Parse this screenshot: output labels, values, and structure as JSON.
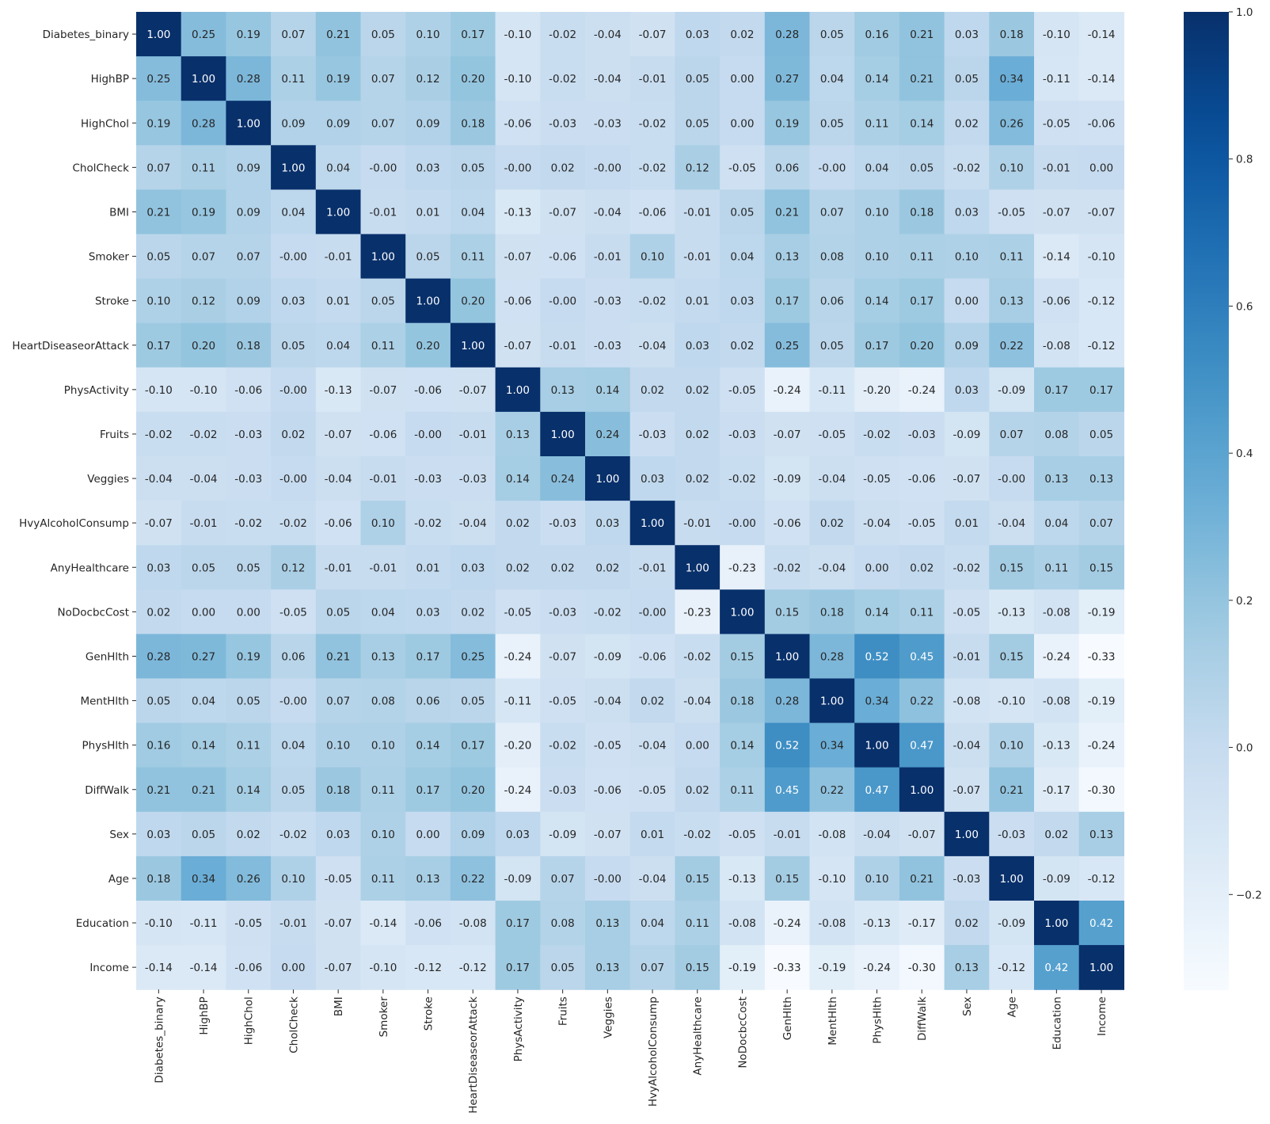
{
  "chart_data": {
    "type": "heatmap",
    "title": "",
    "xlabel": "",
    "ylabel": "",
    "colormap": "Blues",
    "annotation_format": "0.00",
    "labels": [
      "Diabetes_binary",
      "HighBP",
      "HighChol",
      "CholCheck",
      "BMI",
      "Smoker",
      "Stroke",
      "HeartDiseaseorAttack",
      "PhysActivity",
      "Fruits",
      "Veggies",
      "HvyAlcoholConsump",
      "AnyHealthcare",
      "NoDocbcCost",
      "GenHlth",
      "MentHlth",
      "PhysHlth",
      "DiffWalk",
      "Sex",
      "Age",
      "Education",
      "Income"
    ],
    "matrix": [
      [
        1.0,
        0.25,
        0.19,
        0.07,
        0.21,
        0.05,
        0.1,
        0.17,
        -0.1,
        -0.02,
        -0.04,
        -0.07,
        0.03,
        0.02,
        0.28,
        0.05,
        0.16,
        0.21,
        0.03,
        0.18,
        -0.1,
        -0.14
      ],
      [
        0.25,
        1.0,
        0.28,
        0.11,
        0.19,
        0.07,
        0.12,
        0.2,
        -0.1,
        -0.02,
        -0.04,
        -0.01,
        0.05,
        0.0,
        0.27,
        0.04,
        0.14,
        0.21,
        0.05,
        0.34,
        -0.11,
        -0.14
      ],
      [
        0.19,
        0.28,
        1.0,
        0.09,
        0.09,
        0.07,
        0.09,
        0.18,
        -0.06,
        -0.03,
        -0.03,
        -0.02,
        0.05,
        0.0,
        0.19,
        0.05,
        0.11,
        0.14,
        0.02,
        0.26,
        -0.05,
        -0.06
      ],
      [
        0.07,
        0.11,
        0.09,
        1.0,
        0.04,
        -0.0,
        0.03,
        0.05,
        -0.0,
        0.02,
        -0.0,
        -0.02,
        0.12,
        -0.05,
        0.06,
        -0.0,
        0.04,
        0.05,
        -0.02,
        0.1,
        -0.01,
        0.0
      ],
      [
        0.21,
        0.19,
        0.09,
        0.04,
        1.0,
        -0.01,
        0.01,
        0.04,
        -0.13,
        -0.07,
        -0.04,
        -0.06,
        -0.01,
        0.05,
        0.21,
        0.07,
        0.1,
        0.18,
        0.03,
        -0.05,
        -0.07,
        -0.07
      ],
      [
        0.05,
        0.07,
        0.07,
        -0.0,
        -0.01,
        1.0,
        0.05,
        0.11,
        -0.07,
        -0.06,
        -0.01,
        0.1,
        -0.01,
        0.04,
        0.13,
        0.08,
        0.1,
        0.11,
        0.1,
        0.11,
        -0.14,
        -0.1
      ],
      [
        0.1,
        0.12,
        0.09,
        0.03,
        0.01,
        0.05,
        1.0,
        0.2,
        -0.06,
        -0.0,
        -0.03,
        -0.02,
        0.01,
        0.03,
        0.17,
        0.06,
        0.14,
        0.17,
        0.0,
        0.13,
        -0.06,
        -0.12
      ],
      [
        0.17,
        0.2,
        0.18,
        0.05,
        0.04,
        0.11,
        0.2,
        1.0,
        -0.07,
        -0.01,
        -0.03,
        -0.04,
        0.03,
        0.02,
        0.25,
        0.05,
        0.17,
        0.2,
        0.09,
        0.22,
        -0.08,
        -0.12
      ],
      [
        -0.1,
        -0.1,
        -0.06,
        -0.0,
        -0.13,
        -0.07,
        -0.06,
        -0.07,
        1.0,
        0.13,
        0.14,
        0.02,
        0.02,
        -0.05,
        -0.24,
        -0.11,
        -0.2,
        -0.24,
        0.03,
        -0.09,
        0.17,
        0.17
      ],
      [
        -0.02,
        -0.02,
        -0.03,
        0.02,
        -0.07,
        -0.06,
        -0.0,
        -0.01,
        0.13,
        1.0,
        0.24,
        -0.03,
        0.02,
        -0.03,
        -0.07,
        -0.05,
        -0.02,
        -0.03,
        -0.09,
        0.07,
        0.08,
        0.05
      ],
      [
        -0.04,
        -0.04,
        -0.03,
        -0.0,
        -0.04,
        -0.01,
        -0.03,
        -0.03,
        0.14,
        0.24,
        1.0,
        0.03,
        0.02,
        -0.02,
        -0.09,
        -0.04,
        -0.05,
        -0.06,
        -0.07,
        -0.0,
        0.13,
        0.13
      ],
      [
        -0.07,
        -0.01,
        -0.02,
        -0.02,
        -0.06,
        0.1,
        -0.02,
        -0.04,
        0.02,
        -0.03,
        0.03,
        1.0,
        -0.01,
        -0.0,
        -0.06,
        0.02,
        -0.04,
        -0.05,
        0.01,
        -0.04,
        0.04,
        0.07
      ],
      [
        0.03,
        0.05,
        0.05,
        0.12,
        -0.01,
        -0.01,
        0.01,
        0.03,
        0.02,
        0.02,
        0.02,
        -0.01,
        1.0,
        -0.23,
        -0.02,
        -0.04,
        0.0,
        0.02,
        -0.02,
        0.15,
        0.11,
        0.15
      ],
      [
        0.02,
        0.0,
        0.0,
        -0.05,
        0.05,
        0.04,
        0.03,
        0.02,
        -0.05,
        -0.03,
        -0.02,
        -0.0,
        -0.23,
        1.0,
        0.15,
        0.18,
        0.14,
        0.11,
        -0.05,
        -0.13,
        -0.08,
        -0.19
      ],
      [
        0.28,
        0.27,
        0.19,
        0.06,
        0.21,
        0.13,
        0.17,
        0.25,
        -0.24,
        -0.07,
        -0.09,
        -0.06,
        -0.02,
        0.15,
        1.0,
        0.28,
        0.52,
        0.45,
        -0.01,
        0.15,
        -0.24,
        -0.33
      ],
      [
        0.05,
        0.04,
        0.05,
        -0.0,
        0.07,
        0.08,
        0.06,
        0.05,
        -0.11,
        -0.05,
        -0.04,
        0.02,
        -0.04,
        0.18,
        0.28,
        1.0,
        0.34,
        0.22,
        -0.08,
        -0.1,
        -0.08,
        -0.19
      ],
      [
        0.16,
        0.14,
        0.11,
        0.04,
        0.1,
        0.1,
        0.14,
        0.17,
        -0.2,
        -0.02,
        -0.05,
        -0.04,
        0.0,
        0.14,
        0.52,
        0.34,
        1.0,
        0.47,
        -0.04,
        0.1,
        -0.13,
        -0.24
      ],
      [
        0.21,
        0.21,
        0.14,
        0.05,
        0.18,
        0.11,
        0.17,
        0.2,
        -0.24,
        -0.03,
        -0.06,
        -0.05,
        0.02,
        0.11,
        0.45,
        0.22,
        0.47,
        1.0,
        -0.07,
        0.21,
        -0.17,
        -0.3
      ],
      [
        0.03,
        0.05,
        0.02,
        -0.02,
        0.03,
        0.1,
        0.0,
        0.09,
        0.03,
        -0.09,
        -0.07,
        0.01,
        -0.02,
        -0.05,
        -0.01,
        -0.08,
        -0.04,
        -0.07,
        1.0,
        -0.03,
        0.02,
        0.13
      ],
      [
        0.18,
        0.34,
        0.26,
        0.1,
        -0.05,
        0.11,
        0.13,
        0.22,
        -0.09,
        0.07,
        -0.0,
        -0.04,
        0.15,
        -0.13,
        0.15,
        -0.1,
        0.1,
        0.21,
        -0.03,
        1.0,
        -0.09,
        -0.12
      ],
      [
        -0.1,
        -0.11,
        -0.05,
        -0.01,
        -0.07,
        -0.14,
        -0.06,
        -0.08,
        0.17,
        0.08,
        0.13,
        0.04,
        0.11,
        -0.08,
        -0.24,
        -0.08,
        -0.13,
        -0.17,
        0.02,
        -0.09,
        1.0,
        0.42
      ],
      [
        -0.14,
        -0.14,
        -0.06,
        0.0,
        -0.07,
        -0.1,
        -0.12,
        -0.12,
        0.17,
        0.05,
        0.13,
        0.07,
        0.15,
        -0.19,
        -0.33,
        -0.19,
        -0.24,
        -0.3,
        0.13,
        -0.12,
        0.42,
        1.0
      ]
    ],
    "vmin": -0.33,
    "vmax": 1.0,
    "colorbar": {
      "ticks": [
        -0.2,
        0.0,
        0.2,
        0.4,
        0.6,
        0.8,
        1.0
      ],
      "tick_labels": [
        "−0.2",
        "0.0",
        "0.2",
        "0.4",
        "0.6",
        "0.8",
        "1.0"
      ]
    },
    "grid": false,
    "legend": "colorbar-right"
  }
}
